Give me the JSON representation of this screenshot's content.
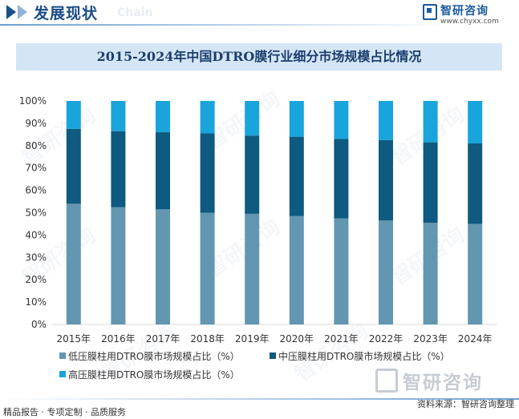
{
  "header": {
    "section_title": "发展现状",
    "section_sub": "Chain",
    "brand_name": "智研咨询",
    "brand_url": "www.chyxx.com"
  },
  "colors": {
    "low": "#6396b0",
    "mid": "#0e5a80",
    "high": "#1aa4dc",
    "grid": "#d9d9d9"
  },
  "watermark_text": "智研咨询",
  "chart_data": {
    "type": "bar",
    "stacked": true,
    "title": "2015-2024年中国DTRO膜行业细分市场规模占比情况",
    "categories": [
      "2015年",
      "2016年",
      "2017年",
      "2018年",
      "2019年",
      "2020年",
      "2021年",
      "2022年",
      "2023年",
      "2024年"
    ],
    "series": [
      {
        "name": "低压膜柱用DTRO膜市场规模占比（%）",
        "color": "#6396b0",
        "values": [
          54,
          52.5,
          51.5,
          50,
          49.5,
          48.5,
          47.5,
          46.5,
          45.5,
          45
        ]
      },
      {
        "name": "中压膜柱用DTRO膜市场规模占比（%）",
        "color": "#0e5a80",
        "values": [
          33.5,
          34,
          34.5,
          35.5,
          35,
          35.5,
          35.5,
          36,
          36,
          36
        ]
      },
      {
        "name": "高压膜柱用DTRO膜市场规模占比（%）",
        "color": "#1aa4dc",
        "values": [
          12.5,
          13.5,
          14,
          14.5,
          15.5,
          16,
          17,
          17.5,
          18.5,
          19
        ]
      }
    ],
    "y_ticks": [
      "0%",
      "10%",
      "20%",
      "30%",
      "40%",
      "50%",
      "60%",
      "70%",
      "80%",
      "90%",
      "100%"
    ],
    "ylim": [
      0,
      100
    ],
    "xlabel": "",
    "ylabel": "",
    "grid": false,
    "legend_position": "bottom"
  },
  "footer": {
    "logo_text": "智研咨询",
    "left_text": "精品报告 · 专项定制 · 品质服务",
    "right_text": "资料来源：智研咨询整理"
  }
}
